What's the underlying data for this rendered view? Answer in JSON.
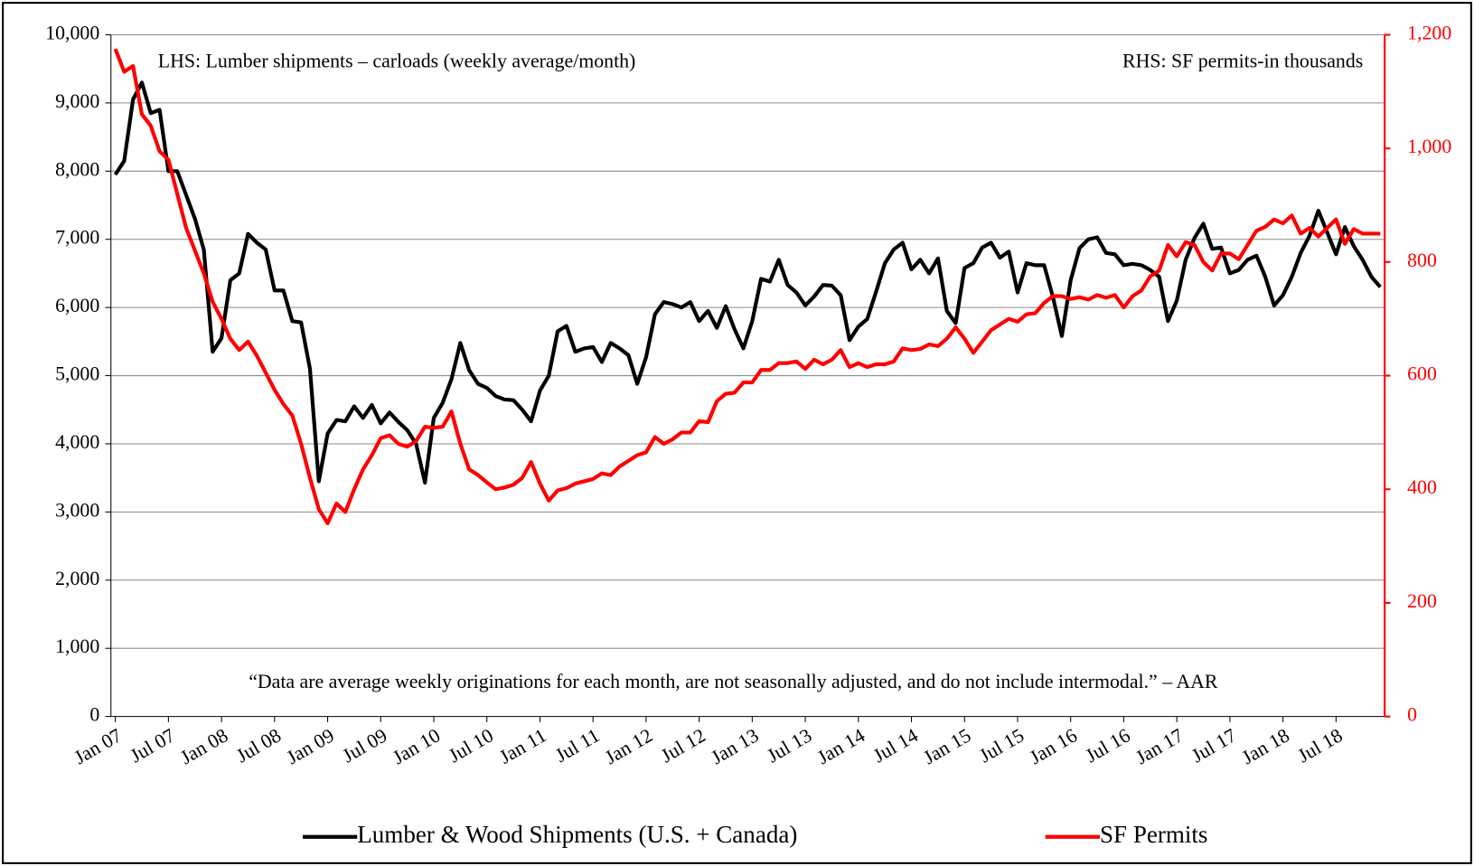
{
  "chart_data": {
    "type": "line",
    "annotations": [
      "LHS: Lumber shipments – carloads (weekly average/month)",
      "RHS: SF permits-in thousands",
      "“Data are average weekly originations for each month, are not seasonally adjusted, and do not include intermodal.” –  AAR"
    ],
    "categories": [
      "Jan 07",
      null,
      null,
      null,
      null,
      null,
      "Jul 07",
      null,
      null,
      null,
      null,
      null,
      "Jan 08",
      null,
      null,
      null,
      null,
      null,
      "Jul 08",
      null,
      null,
      null,
      null,
      null,
      "Jan 09",
      null,
      null,
      null,
      null,
      null,
      "Jul 09",
      null,
      null,
      null,
      null,
      null,
      "Jan 10",
      null,
      null,
      null,
      null,
      null,
      "Jul 10",
      null,
      null,
      null,
      null,
      null,
      "Jan 11",
      null,
      null,
      null,
      null,
      null,
      "Jul 11",
      null,
      null,
      null,
      null,
      null,
      "Jan 12",
      null,
      null,
      null,
      null,
      null,
      "Jul 12",
      null,
      null,
      null,
      null,
      null,
      "Jan 13",
      null,
      null,
      null,
      null,
      null,
      "Jul 13",
      null,
      null,
      null,
      null,
      null,
      "Jan 14",
      null,
      null,
      null,
      null,
      null,
      "Jul 14",
      null,
      null,
      null,
      null,
      null,
      "Jan 15",
      null,
      null,
      null,
      null,
      null,
      "Jul 15",
      null,
      null,
      null,
      null,
      null,
      "Jan 16",
      null,
      null,
      null,
      null,
      null,
      "Jul 16",
      null,
      null,
      null,
      null,
      null,
      "Jan 17",
      null,
      null,
      null,
      null,
      null,
      "Jul 17",
      null,
      null,
      null,
      null,
      null,
      "Jan 18",
      null,
      null,
      null,
      null,
      null,
      "Jul 18",
      null,
      null,
      null,
      null,
      null
    ],
    "series": [
      {
        "name": "Lumber & Wood Shipments (U.S. + Canada)",
        "color": "#000000",
        "axis": "y",
        "values": [
          7950,
          8150,
          9050,
          9300,
          8850,
          8900,
          8000,
          8000,
          7650,
          7300,
          6850,
          5350,
          5550,
          6400,
          6500,
          7080,
          6950,
          6850,
          6250,
          6250,
          5800,
          5780,
          5100,
          3450,
          4150,
          4350,
          4330,
          4550,
          4380,
          4570,
          4300,
          4460,
          4320,
          4200,
          4000,
          3430,
          4380,
          4600,
          4950,
          5480,
          5080,
          4880,
          4820,
          4700,
          4650,
          4640,
          4500,
          4330,
          4780,
          5000,
          5650,
          5730,
          5350,
          5400,
          5420,
          5200,
          5480,
          5400,
          5300,
          4880,
          5270,
          5900,
          6080,
          6050,
          6000,
          6080,
          5800,
          5950,
          5700,
          6020,
          5680,
          5400,
          5800,
          6420,
          6380,
          6700,
          6330,
          6220,
          6030,
          6160,
          6330,
          6320,
          6180,
          5520,
          5720,
          5830,
          6230,
          6650,
          6850,
          6950,
          6560,
          6700,
          6500,
          6720,
          5950,
          5770,
          6580,
          6650,
          6880,
          6950,
          6730,
          6820,
          6220,
          6650,
          6620,
          6620,
          6150,
          5580,
          6400,
          6870,
          7000,
          7030,
          6800,
          6780,
          6620,
          6640,
          6620,
          6550,
          6450,
          5800,
          6100,
          6700,
          7020,
          7230,
          6860,
          6880,
          6500,
          6550,
          6700,
          6760,
          6450,
          6030,
          6180,
          6450,
          6800,
          7050,
          7420,
          7100,
          6780,
          7180,
          6900,
          6700,
          6450,
          6300
        ]
      },
      {
        "name": "SF Permits",
        "color": "#ff0000",
        "axis": "y2",
        "values": [
          1175,
          1135,
          1145,
          1060,
          1040,
          995,
          980,
          920,
          860,
          820,
          780,
          730,
          700,
          665,
          645,
          660,
          635,
          605,
          575,
          550,
          530,
          480,
          420,
          365,
          340,
          375,
          360,
          400,
          435,
          460,
          490,
          495,
          480,
          475,
          485,
          510,
          508,
          510,
          537,
          480,
          435,
          425,
          412,
          400,
          403,
          408,
          420,
          448,
          410,
          380,
          398,
          402,
          410,
          414,
          418,
          428,
          425,
          440,
          450,
          460,
          465,
          492,
          480,
          488,
          500,
          500,
          520,
          518,
          555,
          568,
          570,
          588,
          588,
          610,
          610,
          622,
          622,
          625,
          612,
          628,
          620,
          628,
          645,
          615,
          622,
          615,
          620,
          620,
          625,
          648,
          645,
          647,
          655,
          652,
          665,
          685,
          665,
          640,
          660,
          680,
          690,
          700,
          695,
          708,
          710,
          728,
          740,
          740,
          735,
          738,
          734,
          742,
          737,
          742,
          720,
          740,
          750,
          775,
          785,
          830,
          810,
          835,
          830,
          800,
          785,
          815,
          815,
          805,
          830,
          855,
          862,
          875,
          868,
          882,
          850,
          860,
          845,
          860,
          875,
          832,
          858,
          850,
          850,
          850
        ]
      }
    ],
    "ylim": [
      0,
      10000
    ],
    "yticks": [
      0,
      {
        "value": 1000,
        "label": "1,000"
      },
      {
        "value": 2000,
        "label": "2,000"
      },
      {
        "value": 3000,
        "label": "3,000"
      },
      {
        "value": 4000,
        "label": "4,000"
      },
      {
        "value": 5000,
        "label": "5,000"
      },
      {
        "value": 6000,
        "label": "6,000"
      },
      {
        "value": 7000,
        "label": "7,000"
      },
      {
        "value": 8000,
        "label": "8,000"
      },
      {
        "value": 9000,
        "label": "9,000"
      },
      {
        "value": 10000,
        "label": "10,000"
      }
    ],
    "y2lim": [
      0,
      1200
    ],
    "y2ticks": [
      0,
      200,
      400,
      600,
      800,
      {
        "value": 1000,
        "label": "1,000"
      },
      {
        "value": 1200,
        "label": "1,200"
      }
    ],
    "y2color": "#ff0000",
    "grid": true,
    "legend": "bottom"
  }
}
